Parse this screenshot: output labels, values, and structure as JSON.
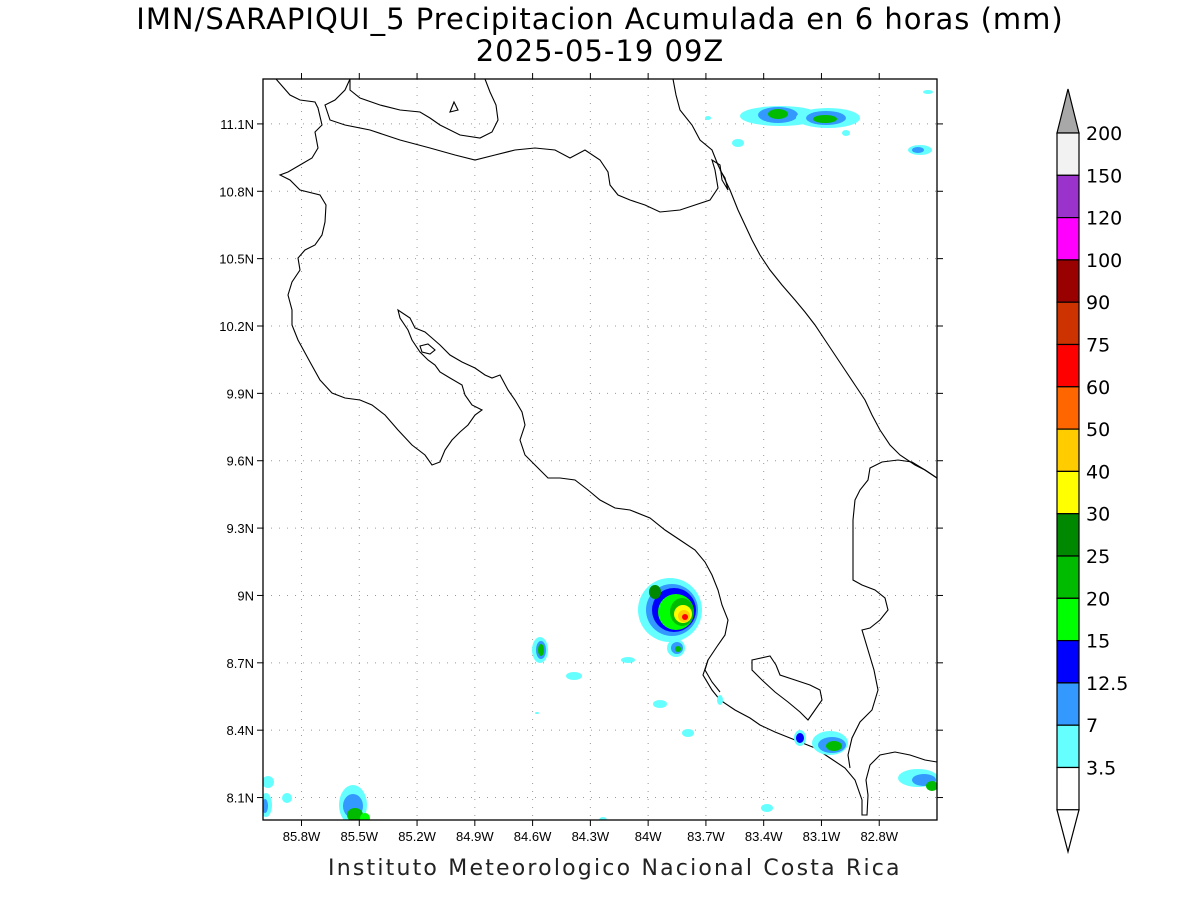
{
  "title_line1": "IMN/SARAPIQUI_5 Precipitacion Acumulada en 6 horas (mm)",
  "title_line2": "2025-05-19 09Z",
  "footer": "Instituto Meteorologico Nacional Costa Rica",
  "map": {
    "lat_ticks": [
      "11.1N",
      "10.8N",
      "10.5N",
      "10.2N",
      "9.9N",
      "9.6N",
      "9.3N",
      "9N",
      "8.7N",
      "8.4N",
      "8.1N"
    ],
    "lon_ticks": [
      "85.8W",
      "85.5W",
      "85.2W",
      "84.9W",
      "84.6W",
      "84.3W",
      "84W",
      "83.7W",
      "83.4W",
      "83.1W",
      "82.8W"
    ],
    "lat_values": [
      11.1,
      10.8,
      10.5,
      10.2,
      9.9,
      9.6,
      9.3,
      9.0,
      8.7,
      8.4,
      8.1
    ],
    "lon_values": [
      -85.8,
      -85.5,
      -85.2,
      -84.9,
      -84.6,
      -84.3,
      -84.0,
      -83.7,
      -83.4,
      -83.1,
      -82.8
    ],
    "lon_range": [
      -86.0,
      -82.5
    ],
    "lat_range": [
      8.0,
      11.3
    ]
  },
  "colorbar": {
    "labels": [
      "200",
      "150",
      "120",
      "100",
      "90",
      "75",
      "60",
      "50",
      "40",
      "30",
      "25",
      "20",
      "15",
      "12.5",
      "7",
      "3.5"
    ],
    "colors": [
      "#f2f2f2",
      "#9933cc",
      "#ff00ff",
      "#990000",
      "#cc3300",
      "#ff0000",
      "#ff6600",
      "#ffcc00",
      "#ffff00",
      "#008800",
      "#00bb00",
      "#00ff00",
      "#0000ff",
      "#3399ff",
      "#66ffff",
      "#ffffff"
    ],
    "top_arrow_color": "#a8a8a8",
    "bottom_arrow_color": "#ffffff"
  }
}
